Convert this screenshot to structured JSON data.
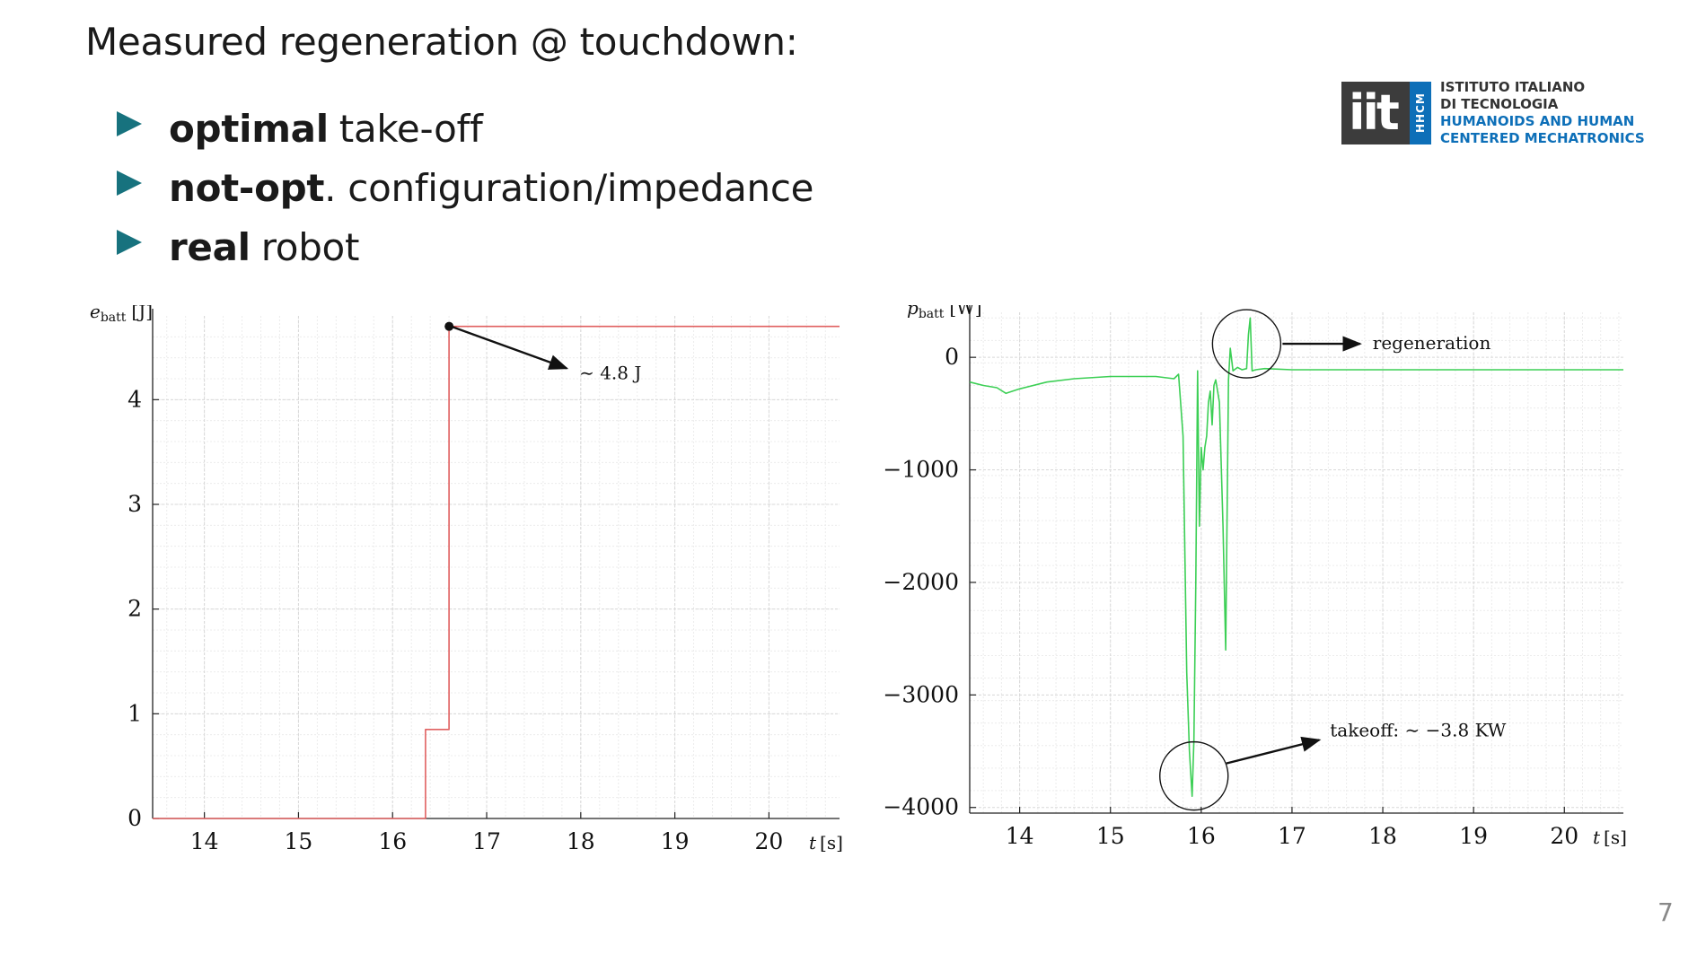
{
  "title": "Measured regeneration @ touchdown:",
  "bullets": [
    {
      "bold": "optimal",
      "rest": "take-off"
    },
    {
      "bold": "not-opt",
      "rest": ". configuration/impedance"
    },
    {
      "bold": "real",
      "rest": "robot"
    }
  ],
  "logo": {
    "mark": "iit",
    "strip": "HHCM",
    "line1": "ISTITUTO ITALIANO",
    "line2": "DI TECNOLOGIA",
    "line3": "HUMANOIDS AND HUMAN",
    "line4": "CENTERED MECHATRONICS"
  },
  "page_number": "7",
  "colors": {
    "accent": "#17727e",
    "energy_line": "#e06060",
    "power_line": "#3ccf55",
    "grid": "#d8d8d8"
  },
  "chart_data": [
    {
      "type": "line",
      "ylabel_symbol": "e",
      "ylabel_sub": "batt",
      "ylabel_unit": "[J]",
      "xlabel_symbol": "t",
      "xlabel_unit": "[s]",
      "xlim": [
        13.45,
        20.75
      ],
      "ylim": [
        0,
        4.8
      ],
      "xticks": [
        "14",
        "15",
        "16",
        "17",
        "18",
        "19",
        "20"
      ],
      "yticks": [
        "0",
        "1",
        "2",
        "3",
        "4"
      ],
      "grid": true,
      "series": [
        {
          "x": [
            13.45,
            16.35,
            16.35,
            16.6,
            16.6,
            20.75
          ],
          "y": [
            0,
            0,
            0.85,
            0.85,
            4.7,
            4.7
          ]
        }
      ],
      "annotations": [
        {
          "text": "∼ 4.8 J",
          "point": [
            16.62,
            4.7
          ],
          "target": [
            17.85,
            4.3
          ]
        }
      ]
    },
    {
      "type": "line",
      "ylabel_symbol": "p",
      "ylabel_sub": "batt",
      "ylabel_unit": "[W]",
      "xlabel_symbol": "t",
      "xlabel_unit": "[s]",
      "xlim": [
        13.45,
        20.65
      ],
      "ylim": [
        -4050,
        400
      ],
      "xticks": [
        "14",
        "15",
        "16",
        "17",
        "18",
        "19",
        "20"
      ],
      "yticks": [
        "0",
        "−1000",
        "−2000",
        "−3000",
        "−4000"
      ],
      "yticks_values": [
        0,
        -1000,
        -2000,
        -3000,
        -4000
      ],
      "grid": true,
      "series": [
        {
          "x": [
            13.45,
            13.6,
            13.75,
            13.85,
            14.0,
            14.3,
            14.6,
            15.0,
            15.5,
            15.7,
            15.75,
            15.8,
            15.84,
            15.87,
            15.9,
            15.92,
            15.94,
            15.96,
            15.98,
            16.0,
            16.02,
            16.04,
            16.06,
            16.08,
            16.1,
            16.12,
            16.14,
            16.16,
            16.2,
            16.24,
            16.27,
            16.3,
            16.32,
            16.35,
            16.4,
            16.45,
            16.5,
            16.52,
            16.54,
            16.56,
            16.6,
            16.7,
            17.0,
            18.0,
            19.0,
            20.0,
            20.65
          ],
          "y": [
            -220,
            -250,
            -270,
            -320,
            -280,
            -220,
            -190,
            -170,
            -170,
            -190,
            -150,
            -700,
            -2800,
            -3500,
            -3900,
            -3400,
            -2000,
            -120,
            -1500,
            -800,
            -1000,
            -800,
            -700,
            -400,
            -300,
            -600,
            -250,
            -200,
            -400,
            -1500,
            -2600,
            -200,
            80,
            -120,
            -90,
            -110,
            -100,
            200,
            350,
            -120,
            -110,
            -100,
            -110,
            -110,
            -110,
            -110,
            -110
          ]
        }
      ],
      "annotations": [
        {
          "text": "regeneration",
          "circle_center": [
            16.5,
            120
          ],
          "target": [
            17.75,
            120
          ]
        },
        {
          "text": "takeoff:  ∼ −3.8 KW",
          "circle_center": [
            15.92,
            -3720
          ],
          "target": [
            17.3,
            -3400
          ]
        }
      ]
    }
  ]
}
